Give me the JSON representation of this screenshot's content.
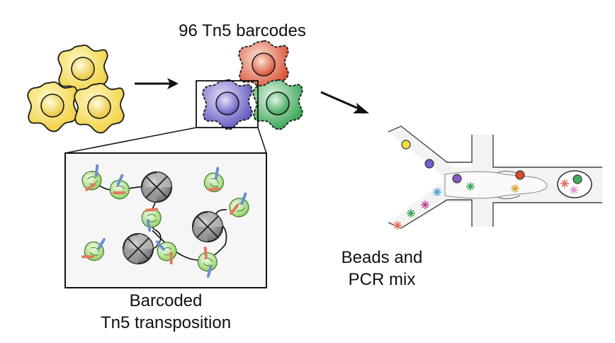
{
  "labels": {
    "barcodes_title": "96 Tn5 barcodes",
    "transposition_line1": "Barcoded",
    "transposition_line2": "Tn5 transposition",
    "beads_line1": "Beads and",
    "beads_line2": "PCR mix"
  },
  "colors": {
    "cell_yellow": "#f2d64a",
    "cell_red": "#e0573a",
    "cell_blue": "#6a62c6",
    "cell_green": "#3fae5a",
    "tn5_green": "#a8dc7a",
    "barcode_red": "#e27a5e",
    "barcode_blue": "#6d8fd0",
    "nucleosome_grey": "#7a7a7a",
    "channel_fill": "#f2f3f2"
  },
  "icons": {
    "cells": "cell-icon",
    "arrow": "arrow-icon",
    "tn5": "tn5-transposase-icon",
    "nucleosome": "nucleosome-icon",
    "microfluidic": "microfluidic-channel-icon",
    "bead": "bead-icon",
    "pcr_mix": "asterisk-icon"
  }
}
